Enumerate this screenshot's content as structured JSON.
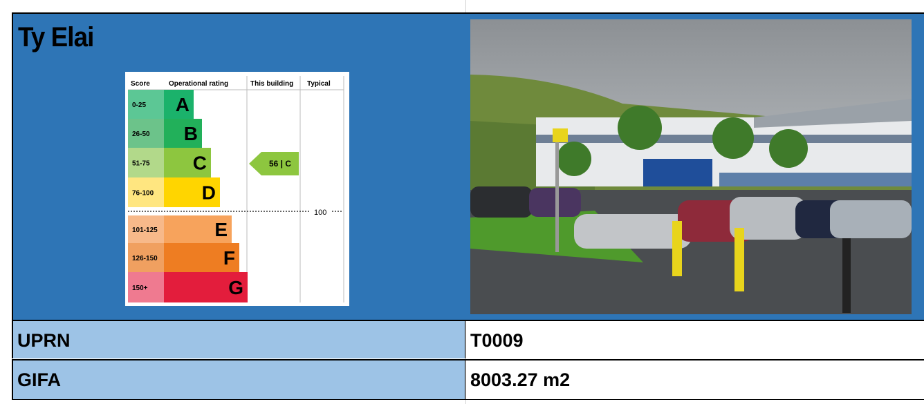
{
  "header": {
    "title": "Ty Elai"
  },
  "rating_chart": {
    "columns": [
      "Score",
      "Operational rating",
      "This building",
      "Typical"
    ],
    "bands": [
      {
        "score": "0-25",
        "letter": "A"
      },
      {
        "score": "26-50",
        "letter": "B"
      },
      {
        "score": "51-75",
        "letter": "C"
      },
      {
        "score": "76-100",
        "letter": "D"
      },
      {
        "score": "101-125",
        "letter": "E"
      },
      {
        "score": "126-150",
        "letter": "F"
      },
      {
        "score": "150+",
        "letter": "G"
      }
    ],
    "building_label": "56 | C",
    "threshold_label": "100"
  },
  "table": {
    "rows": [
      [
        "UPRN",
        "T0009"
      ],
      [
        "GIFA",
        "8003.27 m2"
      ]
    ]
  }
}
